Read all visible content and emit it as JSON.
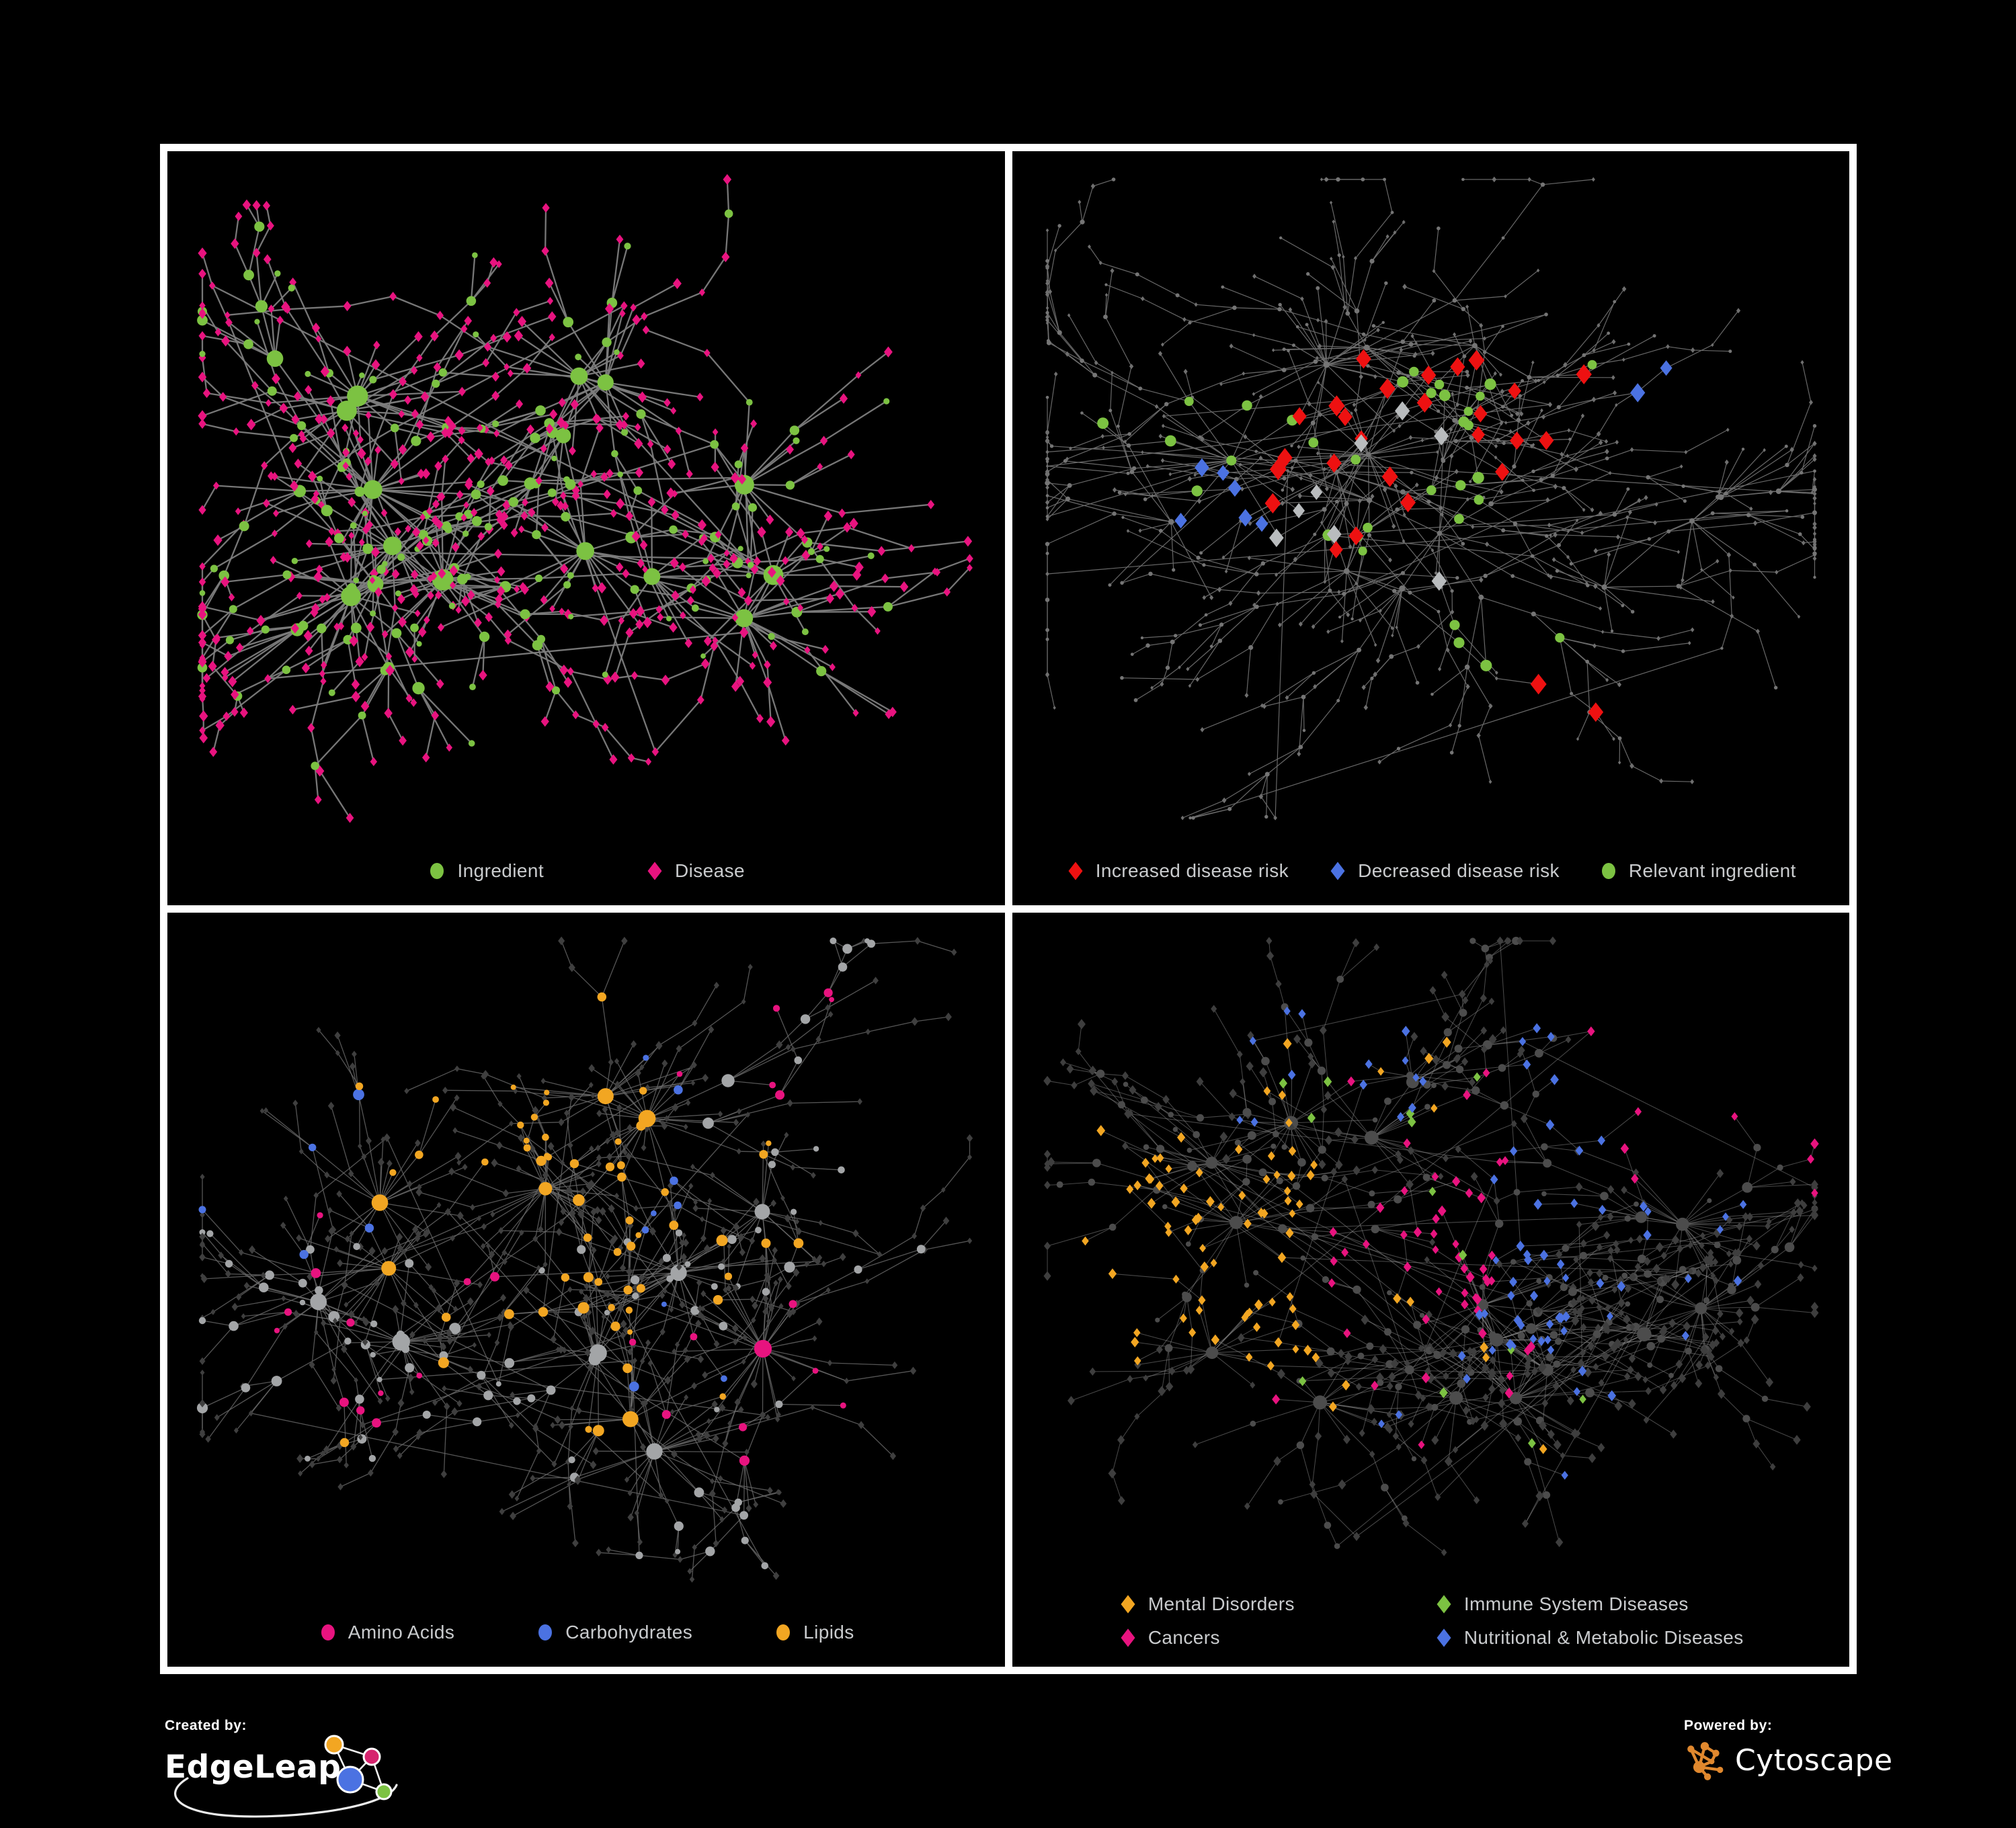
{
  "palette": {
    "background": "#000000",
    "frame": "#ffffff",
    "legend_text": "#c9cbcd",
    "green": "#7cc242",
    "pink": "#e8137f",
    "red": "#ee1111",
    "blue": "#4b72e2",
    "orange": "#f2a622",
    "neutral_gray": "#b9bcbe"
  },
  "footer": {
    "created_by_label": "Created by:",
    "created_by_brand": "EdgeLeap",
    "powered_by_label": "Powered by:",
    "powered_by_brand": "Cytoscape"
  },
  "panels": [
    {
      "id": "ingredient-disease",
      "legend_layout": "row",
      "legend_gap": 150,
      "legend": [
        {
          "label": "Ingredient",
          "shape": "circle",
          "color": "#7cc242"
        },
        {
          "label": "Disease",
          "shape": "diamond",
          "color": "#e8137f"
        }
      ],
      "network": {
        "seed": 11,
        "nodes": 700,
        "hubs": 14,
        "hubBias": 0.24,
        "chainBias": 0.38,
        "step": 0.082,
        "decay": 0.9,
        "xlink": 0.02,
        "leafCircleChance": 0.12,
        "edge": {
          "color": "#7d7d7d",
          "width": 2.3,
          "opacity": 0.95
        },
        "circle": {
          "color": "#7cc242",
          "rMin": 4.6,
          "rMax": 14,
          "kidScale": 1.15
        },
        "diamond": {
          "color": "#e8137f",
          "r": 5.4
        },
        "bottomPad": 130,
        "highlights": []
      }
    },
    {
      "id": "disease-risk",
      "legend_layout": "row",
      "legend_gap": 58,
      "legend": [
        {
          "label": "Increased disease risk",
          "shape": "diamond",
          "color": "#ee1111"
        },
        {
          "label": "Decreased disease risk",
          "shape": "diamond",
          "color": "#4b72e2"
        },
        {
          "label": "Relevant ingredient",
          "shape": "circle",
          "color": "#7cc242"
        }
      ],
      "network": {
        "seed": 47,
        "nodes": 730,
        "hubs": 11,
        "hubBias": 0.14,
        "chainBias": 0.52,
        "step": 0.085,
        "decay": 0.9,
        "xlink": 0.018,
        "leafCircleChance": 0.3,
        "edge": {
          "color": "#6e6e6e",
          "width": 1.2,
          "opacity": 0.95
        },
        "circle": {
          "color": "#757575",
          "rMin": 2.5,
          "rMax": 4.4,
          "kidScale": 0.3
        },
        "diamond": {
          "color": "#6f6f6f",
          "r": 2.7
        },
        "bottomPad": 130,
        "highlights": [
          {
            "applies": "diamond",
            "color": "#ee1111",
            "size": 11,
            "groups": [
              {
                "count": 22,
                "region": [
                  0.28,
                  0.62,
                  0.28,
                  0.58
                ]
              },
              {
                "count": 2,
                "region": [
                  0.6,
                  0.72,
                  0.7,
                  0.84
                ]
              },
              {
                "count": 3,
                "region": [
                  0.58,
                  0.72,
                  0.3,
                  0.44
                ]
              }
            ]
          },
          {
            "applies": "diamond",
            "color": "#4b72e2",
            "size": 10,
            "groups": [
              {
                "count": 6,
                "region": [
                  0.16,
                  0.3,
                  0.38,
                  0.54
                ]
              },
              {
                "count": 2,
                "region": [
                  0.76,
                  0.86,
                  0.26,
                  0.36
                ]
              }
            ]
          },
          {
            "applies": "diamond",
            "color": "#b9bcbe",
            "size": 10,
            "groups": [
              {
                "count": 8,
                "region": [
                  0.22,
                  0.6,
                  0.34,
                  0.64
                ]
              }
            ]
          },
          {
            "applies": "circle",
            "color": "#7cc242",
            "size": 7.5,
            "groups": [
              {
                "count": 24,
                "region": [
                  0.22,
                  0.58,
                  0.28,
                  0.6
                ]
              },
              {
                "count": 4,
                "region": [
                  0.06,
                  0.2,
                  0.32,
                  0.52
                ]
              },
              {
                "count": 4,
                "region": [
                  0.52,
                  0.68,
                  0.64,
                  0.78
                ]
              },
              {
                "count": 1,
                "region": [
                  0.7,
                  0.8,
                  0.3,
                  0.4
                ]
              }
            ]
          }
        ]
      }
    },
    {
      "id": "macronutrients",
      "legend_layout": "row",
      "legend_gap": 120,
      "legend": [
        {
          "label": "Amino Acids",
          "shape": "circle",
          "color": "#e8137f"
        },
        {
          "label": "Carbohydrates",
          "shape": "circle",
          "color": "#4b72e2"
        },
        {
          "label": "Lipids",
          "shape": "circle",
          "color": "#f2a622"
        }
      ],
      "network": {
        "seed": 83,
        "nodes": 760,
        "hubs": 13,
        "hubBias": 0.3,
        "chainBias": 0.36,
        "step": 0.074,
        "decay": 0.9,
        "xlink": 0.04,
        "leafCircleChance": 0.13,
        "edge": {
          "color": "#6a6a6a",
          "width": 1.3,
          "opacity": 0.8
        },
        "circle": {
          "color": "#a3a5a7",
          "rMin": 4.6,
          "rMax": 11.5,
          "kidScale": 1.0
        },
        "diamond": {
          "color": "#3f3f3f",
          "r": 4.1
        },
        "bottomPad": 130,
        "highlights": [
          {
            "applies": "circle",
            "color": "#f2a622",
            "size": 0,
            "groups": [
              {
                "count": 34,
                "region": [
                  0.28,
                  0.52,
                  0.12,
                  0.42
                ]
              },
              {
                "count": 14,
                "region": [
                  0.3,
                  0.58,
                  0.42,
                  0.62
                ]
              },
              {
                "count": 12,
                "region": [
                  0.55,
                  0.85,
                  0.3,
                  0.75
                ]
              },
              {
                "count": 5,
                "region": [
                  0.15,
                  0.6,
                  0.65,
                  0.9
                ]
              }
            ]
          },
          {
            "applies": "circle",
            "color": "#4b72e2",
            "size": 0,
            "groups": [
              {
                "count": 9,
                "region": [
                  0.28,
                  0.52,
                  0.1,
                  0.36
                ]
              },
              {
                "count": 3,
                "region": [
                  0.55,
                  0.75,
                  0.45,
                  0.7
                ]
              },
              {
                "count": 2,
                "region": [
                  0.02,
                  0.18,
                  0.05,
                  0.3
                ]
              }
            ]
          },
          {
            "applies": "circle",
            "color": "#e8137f",
            "size": 0,
            "groups": [
              {
                "count": 7,
                "region": [
                  0.08,
                  0.4,
                  0.3,
                  0.62
                ]
              },
              {
                "count": 9,
                "region": [
                  0.55,
                  0.85,
                  0.55,
                  0.85
                ]
              },
              {
                "count": 6,
                "region": [
                  0.1,
                  0.95,
                  0.02,
                  0.28
                ]
              },
              {
                "count": 5,
                "region": [
                  0.18,
                  0.45,
                  0.68,
                  0.92
                ]
              }
            ]
          }
        ]
      }
    },
    {
      "id": "disease-categories",
      "legend_layout": "grid",
      "legend_gap": 0,
      "legend": [
        {
          "label": "Mental Disorders",
          "shape": "diamond",
          "color": "#f2a622"
        },
        {
          "label": "Immune System Diseases",
          "shape": "diamond",
          "color": "#7cc242"
        },
        {
          "label": "Cancers",
          "shape": "diamond",
          "color": "#e8137f"
        },
        {
          "label": "Nutritional & Metabolic Diseases",
          "shape": "diamond",
          "color": "#4b72e2"
        }
      ],
      "network": {
        "seed": 129,
        "nodes": 820,
        "hubs": 14,
        "hubBias": 0.28,
        "chainBias": 0.36,
        "step": 0.07,
        "decay": 0.9,
        "xlink": 0.04,
        "leafCircleChance": 0.1,
        "edge": {
          "color": "#909090",
          "width": 1.05,
          "opacity": 0.5
        },
        "circle": {
          "color": "#4c4c4c",
          "rMin": 4.2,
          "rMax": 9.5,
          "kidScale": 0.75
        },
        "diamond": {
          "color": "#3e3e3e",
          "r": 4.9
        },
        "bottomPad": 170,
        "highlights": [
          {
            "applies": "diamond",
            "color": "#f2a622",
            "size": 5.6,
            "groups": [
              {
                "count": 68,
                "region": [
                  0.06,
                  0.32,
                  0.36,
                  0.64
                ]
              },
              {
                "count": 8,
                "region": [
                  0.15,
                  0.55,
                  0.05,
                  0.32
                ]
              },
              {
                "count": 8,
                "region": [
                  0.28,
                  0.68,
                  0.58,
                  0.92
                ]
              }
            ]
          },
          {
            "applies": "diamond",
            "color": "#e8137f",
            "size": 5.6,
            "groups": [
              {
                "count": 36,
                "region": [
                  0.34,
                  0.58,
                  0.38,
                  0.66
                ]
              },
              {
                "count": 8,
                "region": [
                  0.8,
                  0.95,
                  0.2,
                  0.32
                ]
              },
              {
                "count": 6,
                "region": [
                  0.34,
                  0.6,
                  0.2,
                  0.38
                ]
              },
              {
                "count": 8,
                "region": [
                  0.2,
                  0.78,
                  0.66,
                  0.95
                ]
              }
            ]
          },
          {
            "applies": "diamond",
            "color": "#4b72e2",
            "size": 5.6,
            "groups": [
              {
                "count": 22,
                "region": [
                  0.52,
                  0.68,
                  0.48,
                  0.66
                ]
              },
              {
                "count": 16,
                "region": [
                  0.58,
                  0.92,
                  0.08,
                  0.45
                ]
              },
              {
                "count": 14,
                "region": [
                  0.18,
                  0.5,
                  0.03,
                  0.3
                ]
              },
              {
                "count": 10,
                "region": [
                  0.6,
                  0.9,
                  0.45,
                  0.62
                ]
              },
              {
                "count": 12,
                "region": [
                  0.1,
                  0.85,
                  0.62,
                  0.96
                ]
              }
            ]
          },
          {
            "applies": "diamond",
            "color": "#7cc242",
            "size": 5.6,
            "groups": [
              {
                "count": 8,
                "region": [
                  0.3,
                  0.58,
                  0.2,
                  0.62
                ]
              },
              {
                "count": 5,
                "region": [
                  0.22,
                  0.75,
                  0.65,
                  0.92
                ]
              }
            ]
          }
        ]
      }
    }
  ]
}
